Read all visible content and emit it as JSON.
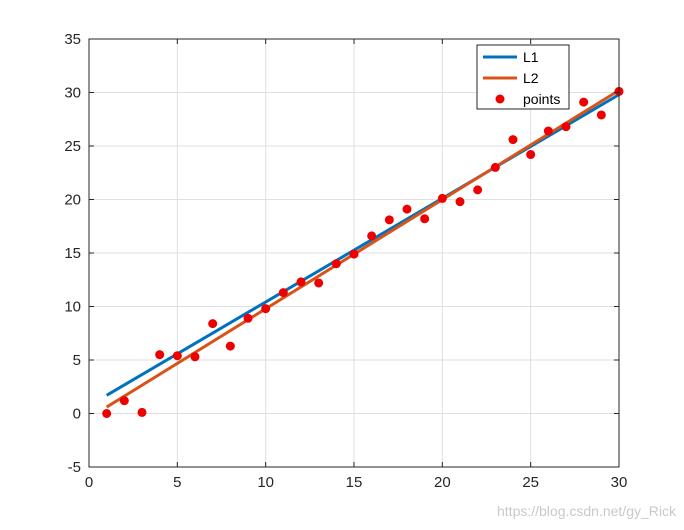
{
  "chart_data": {
    "type": "scatter",
    "xlim": [
      0,
      30
    ],
    "ylim": [
      -5,
      35
    ],
    "xticks": [
      0,
      5,
      10,
      15,
      20,
      25,
      30
    ],
    "yticks": [
      -5,
      0,
      5,
      10,
      15,
      20,
      25,
      30,
      35
    ],
    "grid": true,
    "legend_position": "top-right",
    "series": [
      {
        "name": "L1",
        "kind": "line",
        "color": "#0072BD",
        "x": [
          1,
          30
        ],
        "y": [
          1.7,
          29.8
        ]
      },
      {
        "name": "L2",
        "kind": "line",
        "color": "#D95319",
        "x": [
          1,
          30
        ],
        "y": [
          0.6,
          30.2
        ]
      },
      {
        "name": "points",
        "kind": "marker",
        "color": "#ee0000",
        "x": [
          1,
          2,
          3,
          4,
          5,
          6,
          7,
          8,
          9,
          10,
          11,
          12,
          13,
          14,
          15,
          16,
          17,
          18,
          19,
          20,
          21,
          22,
          23,
          24,
          25,
          26,
          27,
          28,
          29,
          30
        ],
        "y": [
          0.0,
          1.2,
          0.1,
          5.5,
          5.4,
          5.3,
          8.4,
          6.3,
          8.9,
          9.8,
          11.3,
          12.3,
          12.2,
          14.0,
          14.9,
          16.6,
          18.1,
          19.1,
          18.2,
          20.1,
          19.8,
          20.9,
          23.0,
          25.6,
          24.2,
          26.4,
          26.8,
          29.1,
          27.9,
          30.1
        ]
      }
    ]
  },
  "watermark": "https://blog.csdn.net/gy_Rick"
}
